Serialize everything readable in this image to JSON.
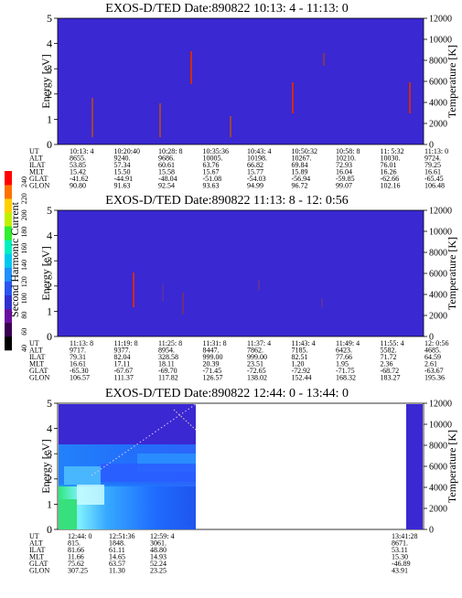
{
  "chart_data": [
    {
      "type": "heatmap",
      "title": "EXOS-D/TED    Date:890822  10:13: 4 - 11:13: 0",
      "ylabel": "Energy [eV]",
      "ylabel_right": "Temperature [K]",
      "ylim": [
        0,
        5
      ],
      "yticks": [
        "0",
        "1",
        "2",
        "3",
        "4",
        "5"
      ],
      "ylim_right": [
        0,
        12000
      ],
      "yticks_right": [
        "0",
        "2000",
        "4000",
        "6000",
        "8000",
        "10000",
        "12000"
      ],
      "data_coverage": [
        0,
        1
      ],
      "table_row_labels": [
        "UT",
        "ALT",
        "ILAT",
        "MLT",
        "GLAT",
        "GLON"
      ],
      "table_columns": [
        [
          "10:13: 4",
          "8655.",
          "53.85",
          "15.42",
          "-41.62",
          "90.80"
        ],
        [
          "10:20:40",
          "9240.",
          "57.34",
          "15.50",
          "-44.91",
          "91.63"
        ],
        [
          "10:28: 8",
          "9686.",
          "60.61",
          "15.58",
          "-48.04",
          "92.54"
        ],
        [
          "10:35:36",
          "10005.",
          "63.76",
          "15.67",
          "-51.08",
          "93.63"
        ],
        [
          "10:43: 4",
          "10198.",
          "66.82",
          "15.77",
          "-54.03",
          "94.99"
        ],
        [
          "10:50:32",
          "10267.",
          "69.84",
          "15.89",
          "-56.94",
          "96.72"
        ],
        [
          "10:58: 8",
          "10210.",
          "72.93",
          "16.04",
          "-59.85",
          "99.07"
        ],
        [
          "11: 5:32",
          "10030.",
          "76.01",
          "16.26",
          "-62.66",
          "102.16"
        ],
        [
          "11:13: 0",
          "9724.",
          "79.25",
          "16.61",
          "-65.45",
          "106.48"
        ]
      ]
    },
    {
      "type": "heatmap",
      "title": "EXOS-D/TED    Date:890822  11:13: 8 - 12: 0:56",
      "ylabel": "Energy [eV]",
      "ylabel_right": "Temperature [K]",
      "ylim": [
        0,
        5
      ],
      "yticks": [
        "0",
        "1",
        "2",
        "3",
        "4",
        "5"
      ],
      "ylim_right": [
        0,
        12000
      ],
      "yticks_right": [
        "0",
        "2000",
        "4000",
        "6000",
        "8000",
        "10000",
        "12000"
      ],
      "data_coverage": [
        0,
        1
      ],
      "table_row_labels": [
        "UT",
        "ALT",
        "ILAT",
        "MLT",
        "GLAT",
        "GLON"
      ],
      "table_columns": [
        [
          "11:13: 8",
          "9717.",
          "79.31",
          "16.61",
          "-65.30",
          "106.57"
        ],
        [
          "11:19: 8",
          "9377.",
          "82.04",
          "17.11",
          "-67.67",
          "111.37"
        ],
        [
          "11:25: 8",
          "8954.",
          "328.58",
          "18.11",
          "-69.70",
          "117.82"
        ],
        [
          "11:31: 8",
          "8447.",
          "999.00",
          "20.39",
          "-71.45",
          "126.57"
        ],
        [
          "11:37: 4",
          "7862.",
          "999.00",
          "23.51",
          "-72.65",
          "138.02"
        ],
        [
          "11:43: 4",
          "7185.",
          "82.51",
          "1.20",
          "-72.92",
          "152.44"
        ],
        [
          "11:49: 4",
          "6423.",
          "77.66",
          "1.95",
          "-71.75",
          "168.32"
        ],
        [
          "11:55: 4",
          "5582.",
          "71.72",
          "2.36",
          "-68.72",
          "183.27"
        ],
        [
          "12: 0:56",
          "4685.",
          "64.59",
          "2.61",
          "-63.67",
          "195.36"
        ]
      ]
    },
    {
      "type": "heatmap",
      "title": "EXOS-D/TED    Date:890822  12:44: 0 - 13:44: 0",
      "ylabel": "Energy [eV]",
      "ylabel_right": "Temperature [K]",
      "ylim": [
        0,
        5
      ],
      "yticks": [
        "0",
        "1",
        "2",
        "3",
        "4",
        "5"
      ],
      "ylim_right": [
        0,
        12000
      ],
      "yticks_right": [
        "0",
        "2000",
        "4000",
        "6000",
        "8000",
        "10000",
        "12000"
      ],
      "data_coverage": [
        0,
        0.423
      ],
      "data_coverage_end": [
        0.97,
        1
      ],
      "table_row_labels": [
        "UT",
        "ALT",
        "ILAT",
        "MLT",
        "GLAT",
        "GLON"
      ],
      "table_columns": [
        [
          "12:44: 0",
          "815.",
          "81.66",
          "11.66",
          "75.62",
          "307.25"
        ],
        [
          "12:51:36",
          "1848.",
          "61.11",
          "14.65",
          "63.57",
          "11.30"
        ],
        [
          "12:59: 4",
          "3061.",
          "48.80",
          "14.93",
          "52.24",
          "23.25"
        ],
        [
          "13:41:28",
          "8671.",
          "53.11",
          "15.30",
          "-46.89",
          "43.91"
        ]
      ]
    }
  ],
  "colorbar": {
    "label": "Second Harmonic Current",
    "ticks": [
      "40",
      "60",
      "80",
      "100",
      "120",
      "140",
      "160",
      "180",
      "200",
      "220",
      "240"
    ],
    "colors": [
      "#000000",
      "#3a0050",
      "#6a0fa0",
      "#3030d0",
      "#2a55f0",
      "#1e90ff",
      "#00c8f0",
      "#00f0c0",
      "#30f030",
      "#c0f000",
      "#ffd000",
      "#ff7000",
      "#ff0000"
    ]
  }
}
